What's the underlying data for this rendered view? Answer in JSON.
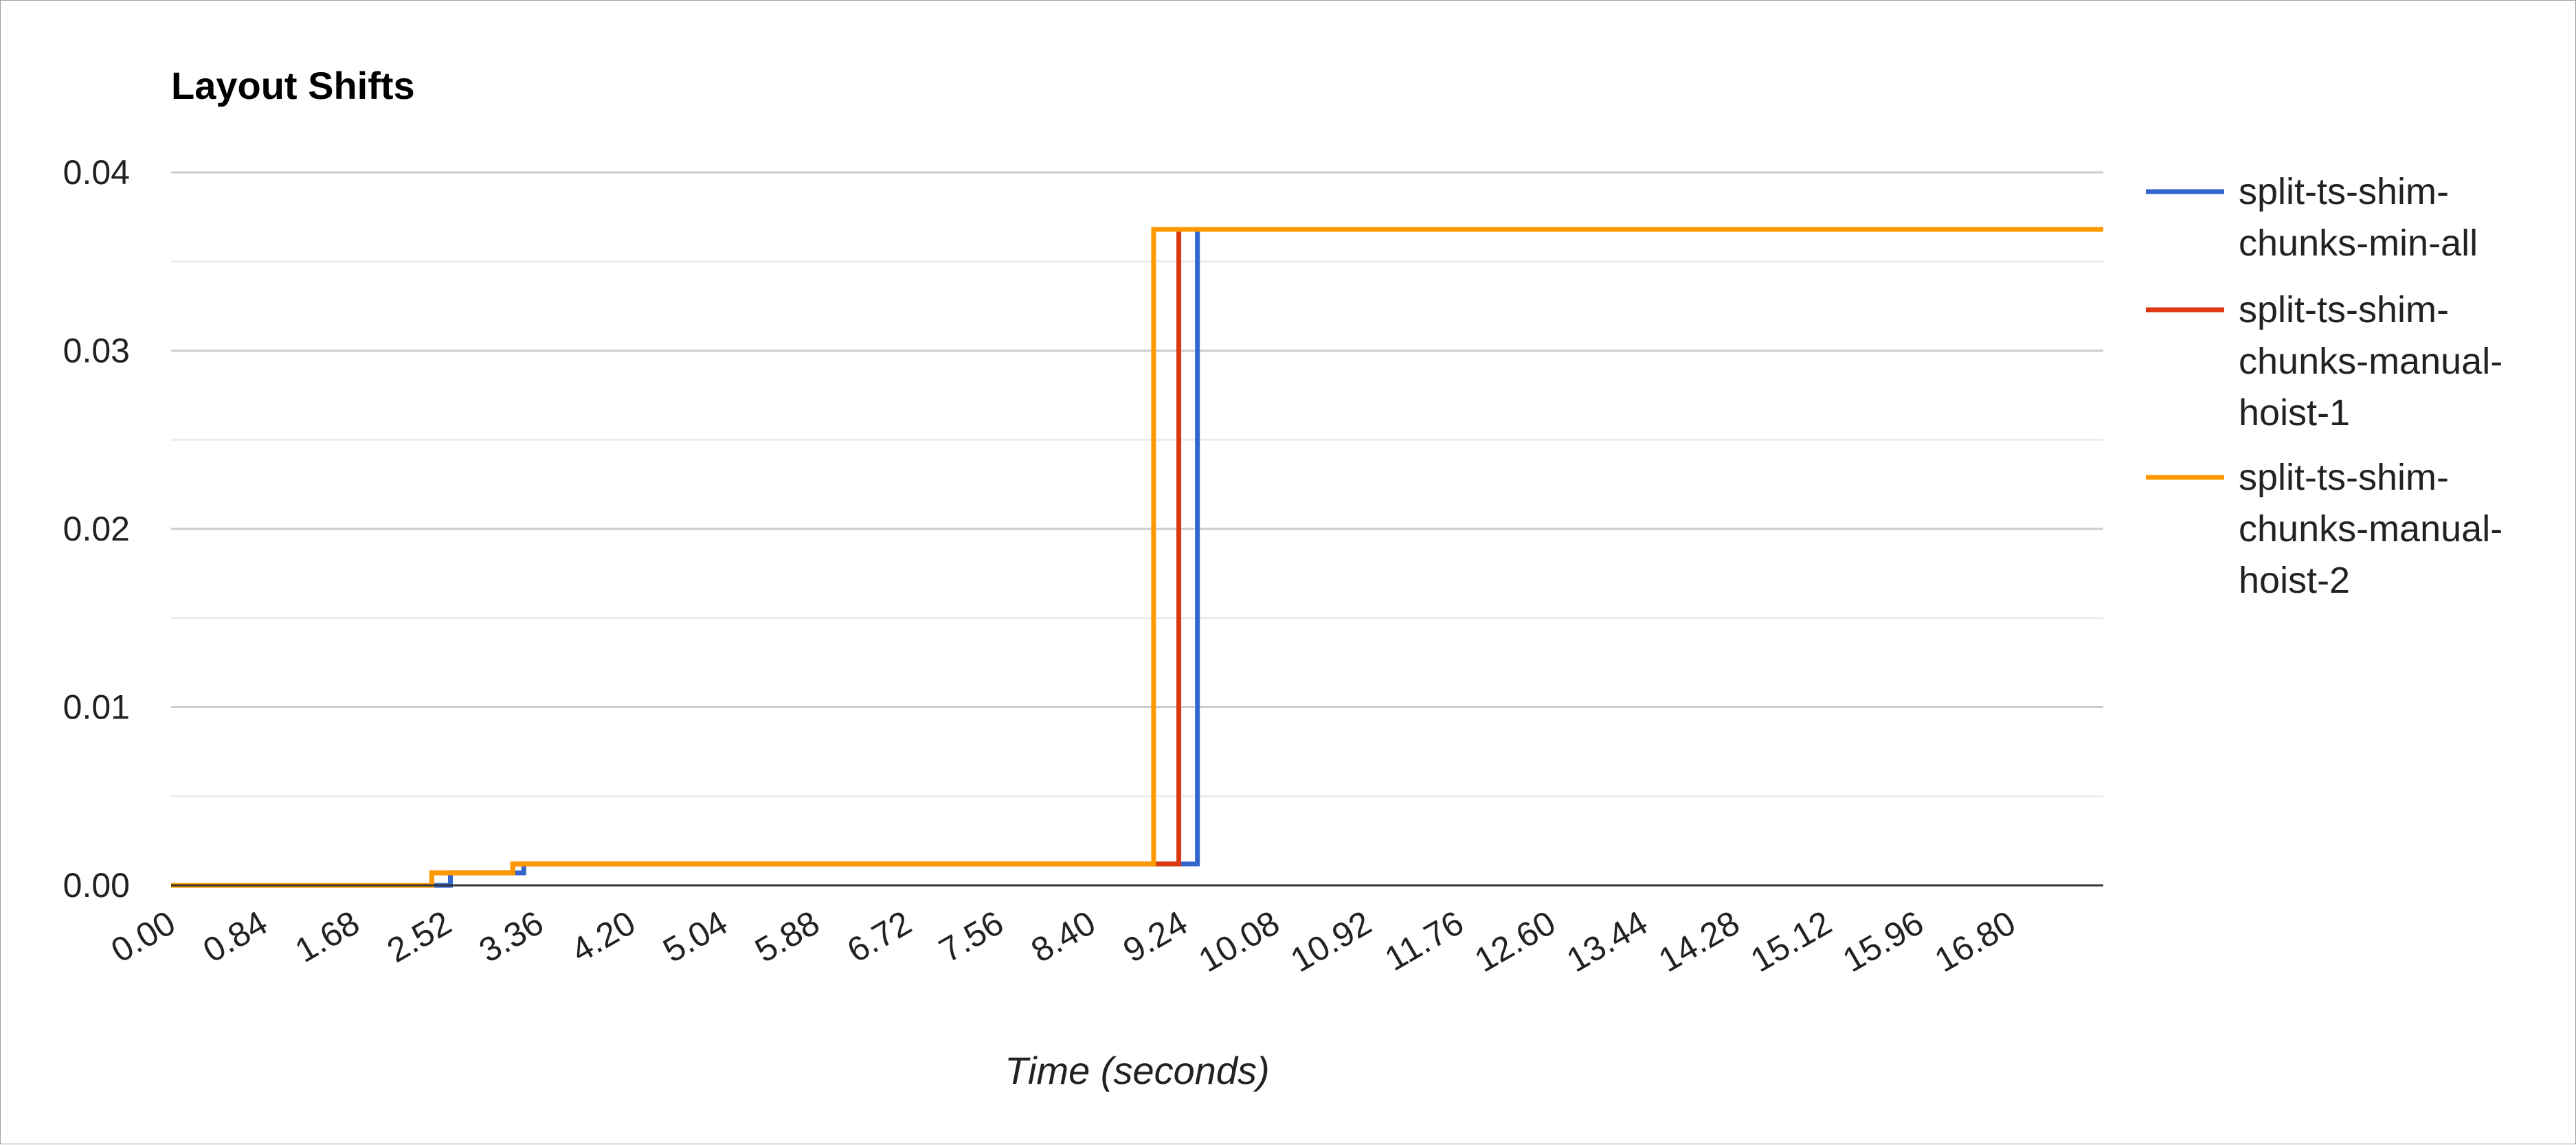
{
  "chart_data": {
    "type": "line",
    "title": "Layout Shifts",
    "xlabel": "Time (seconds)",
    "ylabel": "",
    "xlim": [
      0,
      17.64
    ],
    "ylim": [
      0,
      0.04
    ],
    "x_ticks": [
      "0.00",
      "0.84",
      "1.68",
      "2.52",
      "3.36",
      "4.20",
      "5.04",
      "5.88",
      "6.72",
      "7.56",
      "8.40",
      "9.24",
      "10.08",
      "10.92",
      "11.76",
      "12.60",
      "13.44",
      "14.28",
      "15.12",
      "15.96",
      "16.80"
    ],
    "y_ticks": [
      "0.00",
      "0.01",
      "0.02",
      "0.03",
      "0.04"
    ],
    "grid": true,
    "legend_position": "right",
    "step": true,
    "series": [
      {
        "name": "split-ts-shim-chunks-min-all",
        "color": "#3366cc",
        "x": [
          0,
          2.55,
          3.22,
          9.37,
          17.64
        ],
        "y": [
          0,
          0.0007,
          0.0012,
          0.0368,
          0.0368
        ]
      },
      {
        "name": "split-ts-shim-chunks-manual-hoist-1",
        "color": "#dc3912",
        "x": [
          0,
          2.38,
          3.12,
          9.2,
          17.64
        ],
        "y": [
          0,
          0.0007,
          0.0012,
          0.0368,
          0.0368
        ]
      },
      {
        "name": "split-ts-shim-chunks-manual-hoist-2",
        "color": "#ff9900",
        "x": [
          0,
          2.38,
          3.12,
          8.97,
          17.64
        ],
        "y": [
          0,
          0.0007,
          0.0012,
          0.0368,
          0.0368
        ]
      }
    ]
  },
  "legend": [
    {
      "lines": [
        "split-ts-shim-",
        "chunks-min-all"
      ]
    },
    {
      "lines": [
        "split-ts-shim-",
        "chunks-manual-",
        "hoist-1"
      ]
    },
    {
      "lines": [
        "split-ts-shim-",
        "chunks-manual-",
        "hoist-2"
      ]
    }
  ]
}
